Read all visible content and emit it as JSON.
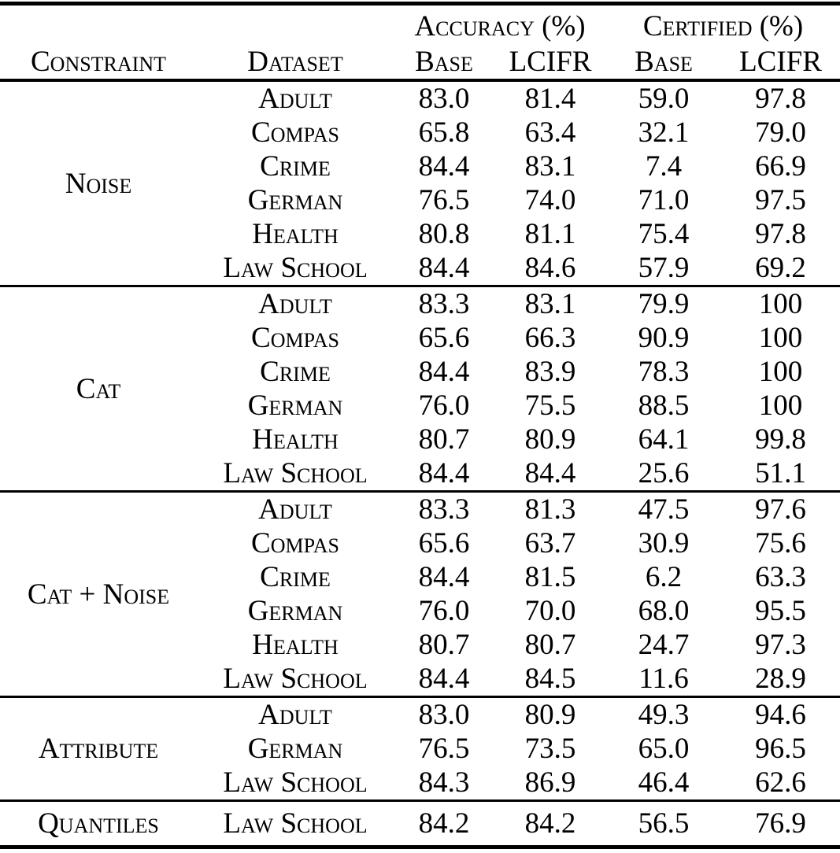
{
  "page": {
    "background_color": "#ffffff",
    "text_color": "#000000",
    "rule_color": "#000000"
  },
  "chart_data": {
    "type": "table",
    "header": {
      "constraint": "Constraint",
      "dataset": "Dataset",
      "accuracy_group": "Accuracy (%)",
      "certified_group": "Certified (%)",
      "accuracy_base": "Base",
      "accuracy_lcifr": "LCIFR",
      "certified_base": "Base",
      "certified_lcifr": "LCIFR"
    },
    "value_columns": [
      "Accuracy (%) Base",
      "Accuracy (%) LCIFR",
      "Certified (%) Base",
      "Certified (%) LCIFR"
    ],
    "groups": [
      {
        "constraint": "Noise",
        "rows": [
          {
            "dataset": "Adult",
            "values": [
              "83.0",
              "81.4",
              "59.0",
              "97.8"
            ]
          },
          {
            "dataset": "Compas",
            "values": [
              "65.8",
              "63.4",
              "32.1",
              "79.0"
            ]
          },
          {
            "dataset": "Crime",
            "values": [
              "84.4",
              "83.1",
              "7.4",
              "66.9"
            ]
          },
          {
            "dataset": "German",
            "values": [
              "76.5",
              "74.0",
              "71.0",
              "97.5"
            ]
          },
          {
            "dataset": "Health",
            "values": [
              "80.8",
              "81.1",
              "75.4",
              "97.8"
            ]
          },
          {
            "dataset": "Law School",
            "values": [
              "84.4",
              "84.6",
              "57.9",
              "69.2"
            ]
          }
        ]
      },
      {
        "constraint": "Cat",
        "rows": [
          {
            "dataset": "Adult",
            "values": [
              "83.3",
              "83.1",
              "79.9",
              "100"
            ]
          },
          {
            "dataset": "Compas",
            "values": [
              "65.6",
              "66.3",
              "90.9",
              "100"
            ]
          },
          {
            "dataset": "Crime",
            "values": [
              "84.4",
              "83.9",
              "78.3",
              "100"
            ]
          },
          {
            "dataset": "German",
            "values": [
              "76.0",
              "75.5",
              "88.5",
              "100"
            ]
          },
          {
            "dataset": "Health",
            "values": [
              "80.7",
              "80.9",
              "64.1",
              "99.8"
            ]
          },
          {
            "dataset": "Law School",
            "values": [
              "84.4",
              "84.4",
              "25.6",
              "51.1"
            ]
          }
        ]
      },
      {
        "constraint": "Cat + Noise",
        "rows": [
          {
            "dataset": "Adult",
            "values": [
              "83.3",
              "81.3",
              "47.5",
              "97.6"
            ]
          },
          {
            "dataset": "Compas",
            "values": [
              "65.6",
              "63.7",
              "30.9",
              "75.6"
            ]
          },
          {
            "dataset": "Crime",
            "values": [
              "84.4",
              "81.5",
              "6.2",
              "63.3"
            ]
          },
          {
            "dataset": "German",
            "values": [
              "76.0",
              "70.0",
              "68.0",
              "95.5"
            ]
          },
          {
            "dataset": "Health",
            "values": [
              "80.7",
              "80.7",
              "24.7",
              "97.3"
            ]
          },
          {
            "dataset": "Law School",
            "values": [
              "84.4",
              "84.5",
              "11.6",
              "28.9"
            ]
          }
        ]
      },
      {
        "constraint": "Attribute",
        "rows": [
          {
            "dataset": "Adult",
            "values": [
              "83.0",
              "80.9",
              "49.3",
              "94.6"
            ]
          },
          {
            "dataset": "German",
            "values": [
              "76.5",
              "73.5",
              "65.0",
              "96.5"
            ]
          },
          {
            "dataset": "Law School",
            "values": [
              "84.3",
              "86.9",
              "46.4",
              "62.6"
            ]
          }
        ]
      },
      {
        "constraint": "Quantiles",
        "rows": [
          {
            "dataset": "Law School",
            "values": [
              "84.2",
              "84.2",
              "56.5",
              "76.9"
            ]
          }
        ]
      }
    ]
  }
}
